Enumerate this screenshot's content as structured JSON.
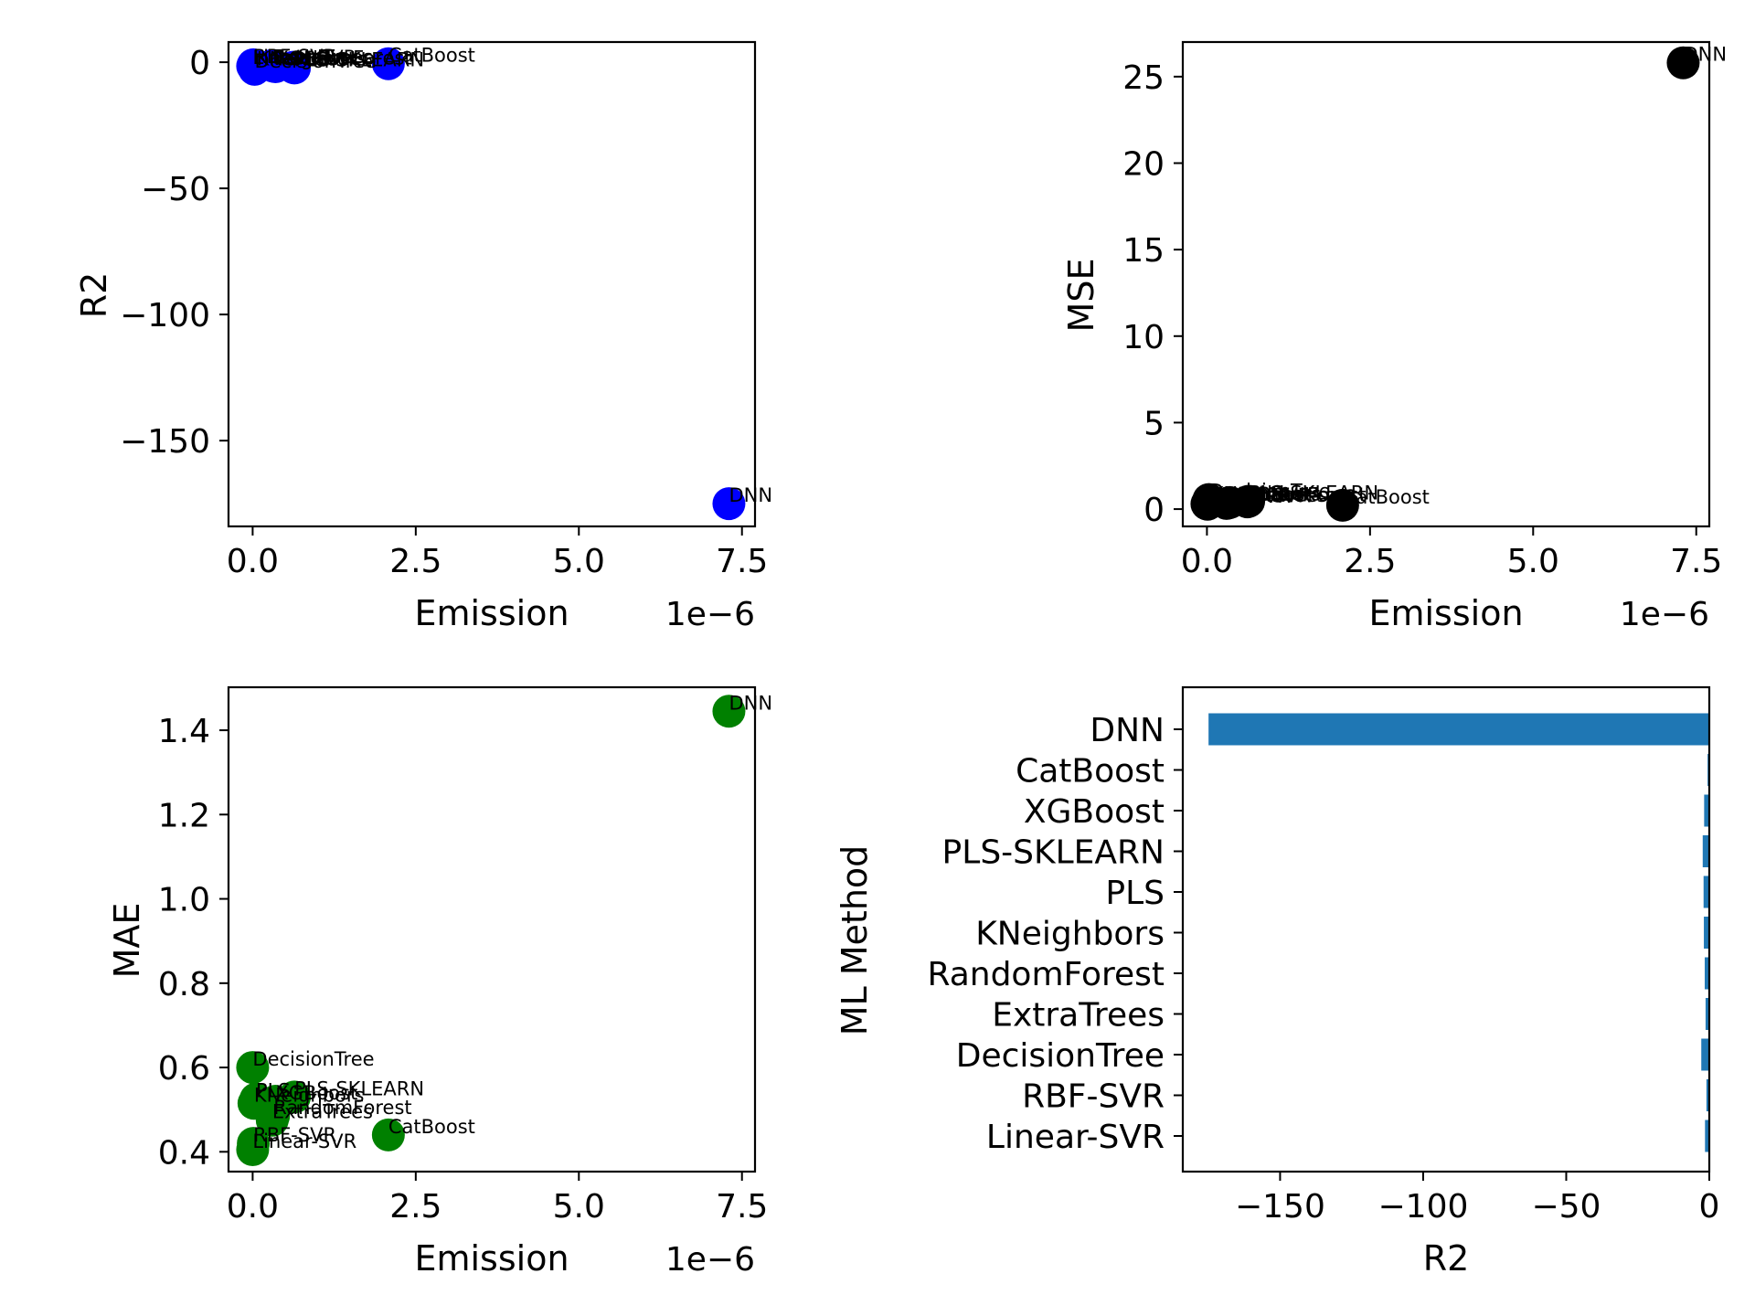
{
  "chart_data": [
    {
      "type": "scatter",
      "xlabel": "Emission",
      "ylabel": "R2",
      "x_offset_text": "1e−6",
      "x_ticks": [
        "0.0",
        "2.5",
        "5.0",
        "7.5"
      ],
      "y_ticks": [
        "0",
        "−50",
        "−100",
        "−150"
      ],
      "xlim": [
        -0.37,
        7.7
      ],
      "ylim": [
        -184,
        8
      ],
      "color": "#0000ff",
      "points": [
        {
          "label": "Linear-SVR",
          "x": 0.0,
          "y": -1.5
        },
        {
          "label": "RBF-SVR",
          "x": 0.01,
          "y": -1.0
        },
        {
          "label": "DecisionTree",
          "x": 0.03,
          "y": -2.8
        },
        {
          "label": "ExtraTrees",
          "x": 0.3,
          "y": -1.3
        },
        {
          "label": "RandomForest",
          "x": 0.32,
          "y": -1.6
        },
        {
          "label": "KNeighbors",
          "x": 0.06,
          "y": -1.9
        },
        {
          "label": "PLS",
          "x": 0.62,
          "y": -2.0
        },
        {
          "label": "PLS-SKLEARN",
          "x": 0.64,
          "y": -2.3
        },
        {
          "label": "XGBoost",
          "x": 0.35,
          "y": -1.8
        },
        {
          "label": "CatBoost",
          "x": 2.08,
          "y": -0.6
        },
        {
          "label": "DNN",
          "x": 7.3,
          "y": -175
        }
      ]
    },
    {
      "type": "scatter",
      "xlabel": "Emission",
      "ylabel": "MSE",
      "x_offset_text": "1e−6",
      "x_ticks": [
        "0.0",
        "2.5",
        "5.0",
        "7.5"
      ],
      "y_ticks": [
        "0",
        "5",
        "10",
        "15",
        "20",
        "25"
      ],
      "xlim": [
        -0.37,
        7.7
      ],
      "ylim": [
        -1.0,
        27.0
      ],
      "color": "#000000",
      "points": [
        {
          "label": "Linear-SVR",
          "x": 0.0,
          "y": 0.3
        },
        {
          "label": "RBF-SVR",
          "x": 0.01,
          "y": 0.28
        },
        {
          "label": "DecisionTree",
          "x": 0.03,
          "y": 0.55
        },
        {
          "label": "ExtraTrees",
          "x": 0.3,
          "y": 0.33
        },
        {
          "label": "RandomForest",
          "x": 0.32,
          "y": 0.35
        },
        {
          "label": "KNeighbors",
          "x": 0.06,
          "y": 0.4
        },
        {
          "label": "PLS",
          "x": 0.62,
          "y": 0.42
        },
        {
          "label": "PLS-SKLEARN",
          "x": 0.64,
          "y": 0.45
        },
        {
          "label": "XGBoost",
          "x": 0.35,
          "y": 0.38
        },
        {
          "label": "CatBoost",
          "x": 2.08,
          "y": 0.22
        },
        {
          "label": "DNN",
          "x": 7.3,
          "y": 25.8
        }
      ]
    },
    {
      "type": "scatter",
      "xlabel": "Emission",
      "ylabel": "MAE",
      "x_offset_text": "1e−6",
      "x_ticks": [
        "0.0",
        "2.5",
        "5.0",
        "7.5"
      ],
      "y_ticks": [
        "0.4",
        "0.6",
        "0.8",
        "1.0",
        "1.2",
        "1.4"
      ],
      "xlim": [
        -0.37,
        7.7
      ],
      "ylim": [
        0.353,
        1.502
      ],
      "color": "#008000",
      "points": [
        {
          "label": "Linear-SVR",
          "x": 0.0,
          "y": 0.405
        },
        {
          "label": "RBF-SVR",
          "x": 0.01,
          "y": 0.42
        },
        {
          "label": "DecisionTree",
          "x": 0.0,
          "y": 0.6
        },
        {
          "label": "ExtraTrees",
          "x": 0.3,
          "y": 0.475
        },
        {
          "label": "RandomForest",
          "x": 0.32,
          "y": 0.485
        },
        {
          "label": "KNeighbors",
          "x": 0.02,
          "y": 0.515
        },
        {
          "label": "PLS",
          "x": 0.05,
          "y": 0.525
        },
        {
          "label": "PLS-SKLEARN",
          "x": 0.64,
          "y": 0.53
        },
        {
          "label": "XGBoost",
          "x": 0.35,
          "y": 0.52
        },
        {
          "label": "CatBoost",
          "x": 2.08,
          "y": 0.44
        },
        {
          "label": "DNN",
          "x": 7.3,
          "y": 1.445
        }
      ]
    },
    {
      "type": "barh",
      "xlabel": "R2",
      "ylabel": "ML Method",
      "x_ticks": [
        "−150",
        "−100",
        "−50",
        "0"
      ],
      "xlim": [
        -184,
        0
      ],
      "color": "#1f77b4",
      "categories": [
        "DNN",
        "CatBoost",
        "XGBoost",
        "PLS-SKLEARN",
        "PLS",
        "KNeighbors",
        "RandomForest",
        "ExtraTrees",
        "DecisionTree",
        "RBF-SVR",
        "Linear-SVR"
      ],
      "values": [
        -175,
        -0.6,
        -1.8,
        -2.3,
        -2.0,
        -1.9,
        -1.6,
        -1.3,
        -2.8,
        -1.0,
        -1.5
      ]
    }
  ]
}
